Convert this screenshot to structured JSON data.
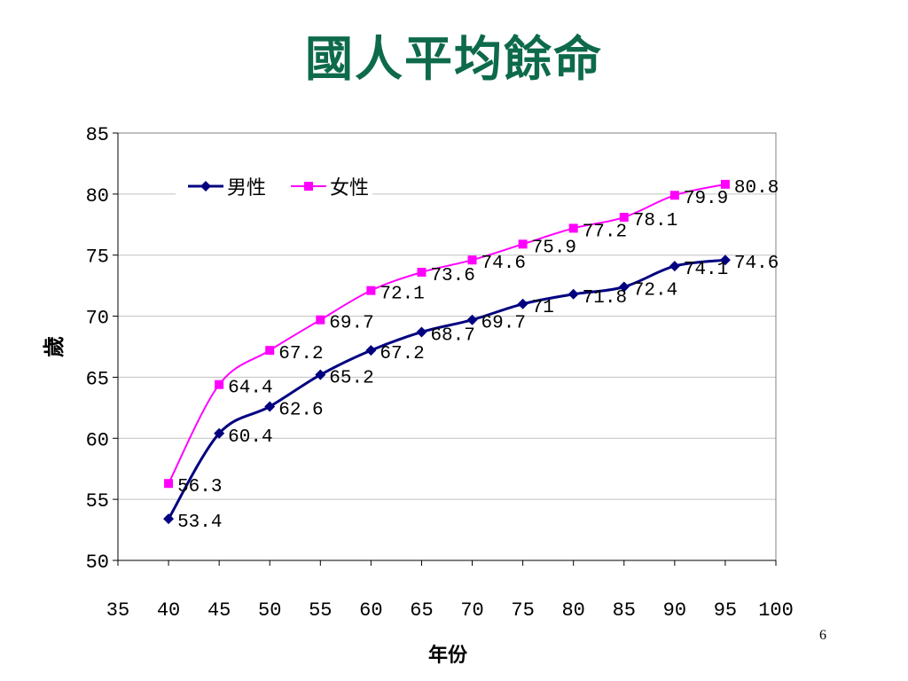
{
  "slide": {
    "title": "國人平均餘命",
    "page_number": "6"
  },
  "colors": {
    "title": "#0d6a4a",
    "male": "#000080",
    "female": "#ff00ff",
    "grid": "#c0c0c0"
  },
  "chart_data": {
    "type": "line",
    "title": "國人平均餘命",
    "xlabel": "年份",
    "ylabel": "歲",
    "xlim": [
      35,
      100
    ],
    "ylim": [
      50,
      85
    ],
    "xticks": [
      35,
      40,
      45,
      50,
      55,
      60,
      65,
      70,
      75,
      80,
      85,
      90,
      95,
      100
    ],
    "yticks": [
      50,
      55,
      60,
      65,
      70,
      75,
      80,
      85
    ],
    "grid": "horizontal",
    "legend_position": "top-left",
    "x": [
      40,
      45,
      50,
      55,
      60,
      65,
      70,
      75,
      80,
      85,
      90,
      95
    ],
    "series": [
      {
        "name": "男性",
        "marker": "diamond",
        "values": [
          53.4,
          60.4,
          62.6,
          65.2,
          67.2,
          68.7,
          69.7,
          71,
          71.8,
          72.4,
          74.1,
          74.6
        ]
      },
      {
        "name": "女性",
        "marker": "square",
        "values": [
          56.3,
          64.4,
          67.2,
          69.7,
          72.1,
          73.6,
          74.6,
          75.9,
          77.2,
          78.1,
          79.9,
          80.8
        ]
      }
    ]
  }
}
